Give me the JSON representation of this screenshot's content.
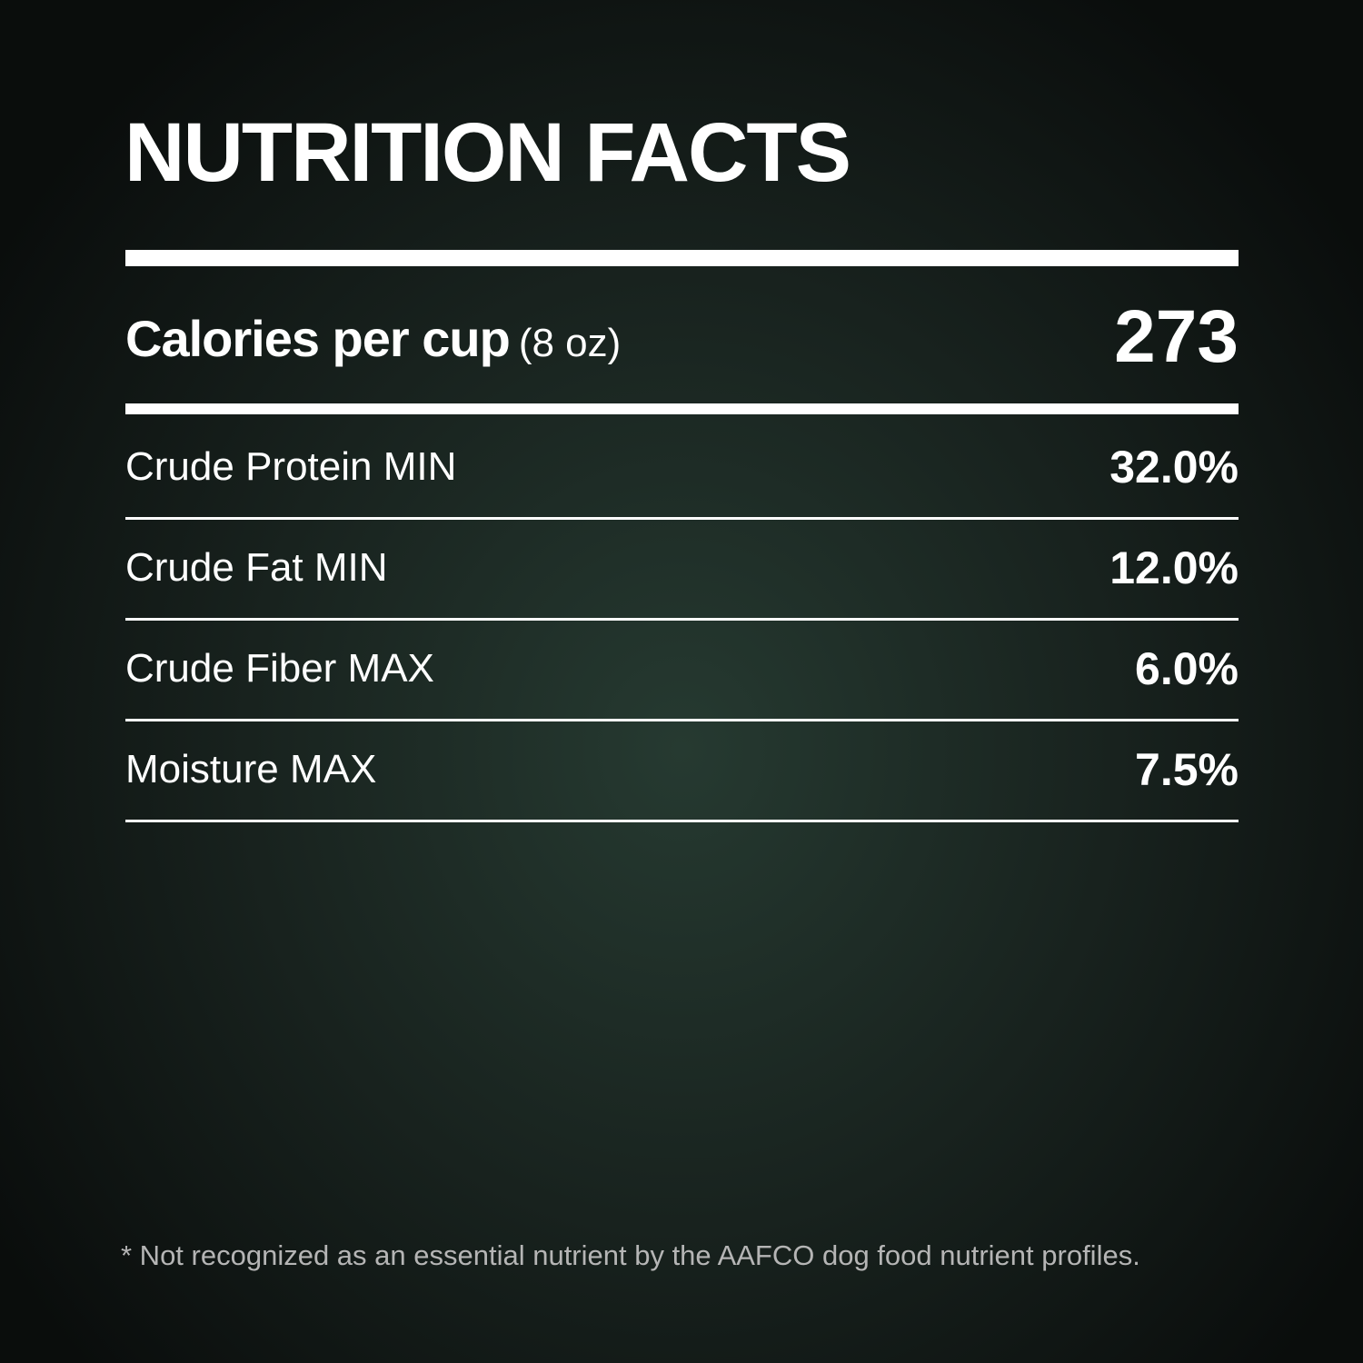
{
  "title": "NUTRITION FACTS",
  "calories": {
    "label": "Calories per cup",
    "unit": "(8 oz)",
    "value": "273"
  },
  "rows": [
    {
      "label": "Crude Protein MIN",
      "value": "32.0%"
    },
    {
      "label": "Crude Fat MIN",
      "value": "12.0%"
    },
    {
      "label": "Crude Fiber MAX",
      "value": "6.0%"
    },
    {
      "label": "Moisture MAX",
      "value": "7.5%"
    }
  ],
  "footnote": "* Not recognized as an essential nutrient by the AAFCO dog food nutrient profiles."
}
